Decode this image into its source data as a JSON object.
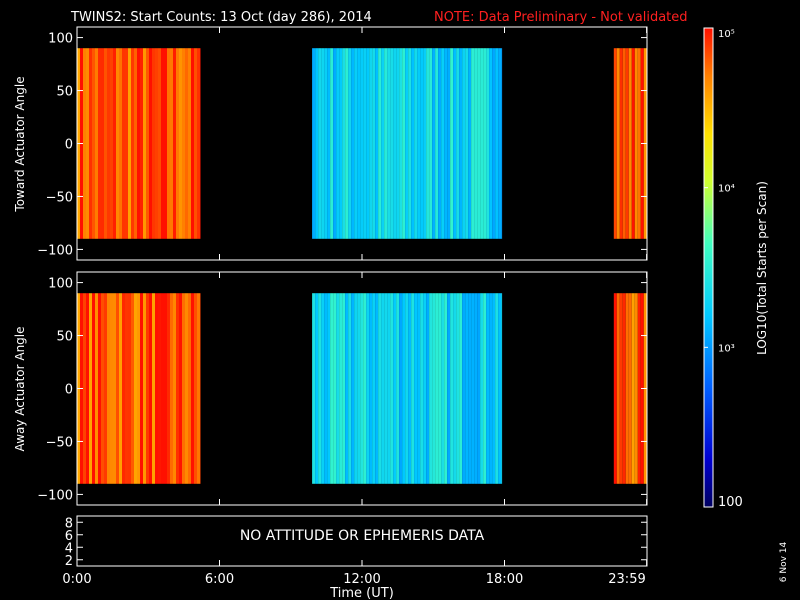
{
  "header": {
    "title": "TWINS2: Start Counts: 13 Oct (day 286), 2014",
    "note": "NOTE: Data Preliminary - Not validated"
  },
  "side_date": "6 Nov 14",
  "colorbar": {
    "label": "LOG10(Total Starts per Scan)",
    "ticks": [
      {
        "value": 100,
        "label": "100"
      },
      {
        "value": 1000,
        "label": "10³"
      },
      {
        "value": 10000,
        "label": "10⁴"
      },
      {
        "value": 100000,
        "label": "10⁵"
      }
    ],
    "range": [
      100,
      100000
    ],
    "scale": "log"
  },
  "info_panel": {
    "message": "NO ATTITUDE OR EPHEMERIS DATA",
    "yticks": [
      "2",
      "4",
      "6",
      "8"
    ]
  },
  "x_axis": {
    "label": "Time (UT)",
    "ticks": [
      {
        "hours": 0,
        "label": "0:00"
      },
      {
        "hours": 6,
        "label": "6:00"
      },
      {
        "hours": 12,
        "label": "12:00"
      },
      {
        "hours": 18,
        "label": "18:00"
      },
      {
        "hours": 23.983,
        "label": "23:59"
      }
    ]
  },
  "chart_data": [
    {
      "type": "heatmap",
      "ylabel": "Toward Actuator Angle",
      "xlabel": "Time (UT)",
      "xlim": [
        0,
        24
      ],
      "ylim": [
        -110,
        110
      ],
      "yticks": [
        100,
        50,
        0,
        -50,
        -100
      ],
      "value_range_deg": [
        -90,
        90
      ],
      "data_segments_hours": [
        [
          0.0,
          5.2
        ],
        [
          9.9,
          17.9
        ],
        [
          22.6,
          24.0
        ]
      ],
      "segment_log10_counts": [
        4.8,
        3.3,
        4.8
      ]
    },
    {
      "type": "heatmap",
      "ylabel": "Away Actuator Angle",
      "xlabel": "Time (UT)",
      "xlim": [
        0,
        24
      ],
      "ylim": [
        -110,
        110
      ],
      "yticks": [
        100,
        50,
        0,
        -50,
        -100
      ],
      "value_range_deg": [
        -90,
        90
      ],
      "data_segments_hours": [
        [
          0.0,
          5.2
        ],
        [
          9.9,
          17.9
        ],
        [
          22.6,
          24.0
        ]
      ],
      "segment_log10_counts": [
        4.8,
        3.3,
        4.8
      ]
    }
  ]
}
